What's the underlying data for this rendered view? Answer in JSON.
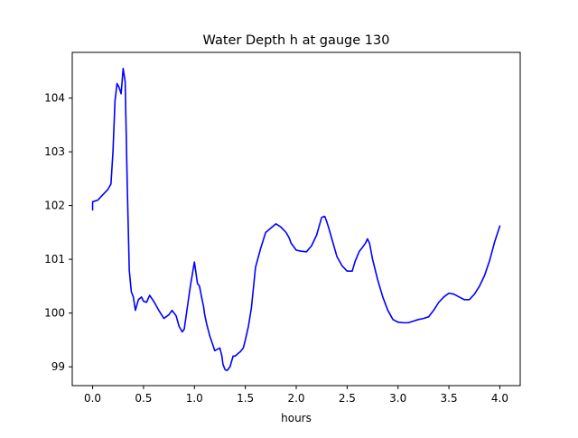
{
  "chart_data": {
    "type": "line",
    "title": "Water Depth h at gauge 130",
    "xlabel": "hours",
    "ylabel": "",
    "xlim": [
      -0.2,
      4.2
    ],
    "ylim": [
      98.65,
      104.85
    ],
    "x_ticks": [
      {
        "value": 0.0,
        "label": "0.0"
      },
      {
        "value": 0.5,
        "label": "0.5"
      },
      {
        "value": 1.0,
        "label": "1.0"
      },
      {
        "value": 1.5,
        "label": "1.5"
      },
      {
        "value": 2.0,
        "label": "2.0"
      },
      {
        "value": 2.5,
        "label": "2.5"
      },
      {
        "value": 3.0,
        "label": "3.0"
      },
      {
        "value": 3.5,
        "label": "3.5"
      },
      {
        "value": 4.0,
        "label": "4.0"
      }
    ],
    "y_ticks": [
      {
        "value": 99,
        "label": "99"
      },
      {
        "value": 100,
        "label": "100"
      },
      {
        "value": 101,
        "label": "101"
      },
      {
        "value": 102,
        "label": "102"
      },
      {
        "value": 103,
        "label": "103"
      },
      {
        "value": 104,
        "label": "104"
      }
    ],
    "grid": false,
    "legend": "none",
    "series": [
      {
        "color": "#0000ff",
        "x": [
          0.0,
          0.0,
          0.05,
          0.1,
          0.15,
          0.18,
          0.2,
          0.22,
          0.24,
          0.26,
          0.28,
          0.3,
          0.32,
          0.34,
          0.36,
          0.38,
          0.4,
          0.42,
          0.45,
          0.48,
          0.5,
          0.53,
          0.56,
          0.6,
          0.63,
          0.65,
          0.7,
          0.75,
          0.78,
          0.82,
          0.85,
          0.88,
          0.9,
          0.93,
          0.96,
          1.0,
          1.03,
          1.05,
          1.07,
          1.09,
          1.1,
          1.12,
          1.15,
          1.2,
          1.25,
          1.27,
          1.28,
          1.3,
          1.32,
          1.35,
          1.38,
          1.4,
          1.43,
          1.45,
          1.48,
          1.5,
          1.53,
          1.56,
          1.6,
          1.65,
          1.7,
          1.75,
          1.8,
          1.85,
          1.9,
          1.93,
          1.95,
          2.0,
          2.05,
          2.1,
          2.15,
          2.2,
          2.25,
          2.28,
          2.3,
          2.32,
          2.35,
          2.4,
          2.45,
          2.5,
          2.55,
          2.58,
          2.62,
          2.65,
          2.68,
          2.7,
          2.72,
          2.75,
          2.8,
          2.85,
          2.9,
          2.95,
          3.0,
          3.05,
          3.1,
          3.15,
          3.2,
          3.25,
          3.3,
          3.35,
          3.4,
          3.45,
          3.5,
          3.55,
          3.6,
          3.65,
          3.7,
          3.75,
          3.8,
          3.85,
          3.9,
          3.95,
          4.0
        ],
        "y": [
          101.92,
          102.07,
          102.1,
          102.2,
          102.3,
          102.4,
          103.0,
          103.95,
          104.27,
          104.2,
          104.08,
          104.55,
          104.3,
          102.4,
          100.8,
          100.4,
          100.3,
          100.05,
          100.25,
          100.3,
          100.22,
          100.2,
          100.33,
          100.22,
          100.12,
          100.05,
          99.9,
          99.97,
          100.05,
          99.95,
          99.75,
          99.65,
          99.7,
          100.1,
          100.5,
          100.95,
          100.55,
          100.5,
          100.3,
          100.12,
          99.98,
          99.8,
          99.58,
          99.3,
          99.35,
          99.2,
          99.05,
          98.95,
          98.93,
          99.0,
          99.2,
          99.2,
          99.25,
          99.28,
          99.35,
          99.5,
          99.75,
          100.1,
          100.85,
          101.2,
          101.5,
          101.58,
          101.66,
          101.6,
          101.5,
          101.4,
          101.3,
          101.17,
          101.15,
          101.14,
          101.25,
          101.45,
          101.78,
          101.8,
          101.7,
          101.58,
          101.38,
          101.05,
          100.88,
          100.78,
          100.78,
          100.97,
          101.15,
          101.22,
          101.3,
          101.38,
          101.3,
          101.0,
          100.62,
          100.3,
          100.05,
          99.88,
          99.83,
          99.82,
          99.82,
          99.85,
          99.88,
          99.9,
          99.93,
          100.05,
          100.2,
          100.3,
          100.37,
          100.35,
          100.3,
          100.25,
          100.25,
          100.35,
          100.5,
          100.7,
          100.98,
          101.33,
          101.62
        ]
      }
    ]
  }
}
